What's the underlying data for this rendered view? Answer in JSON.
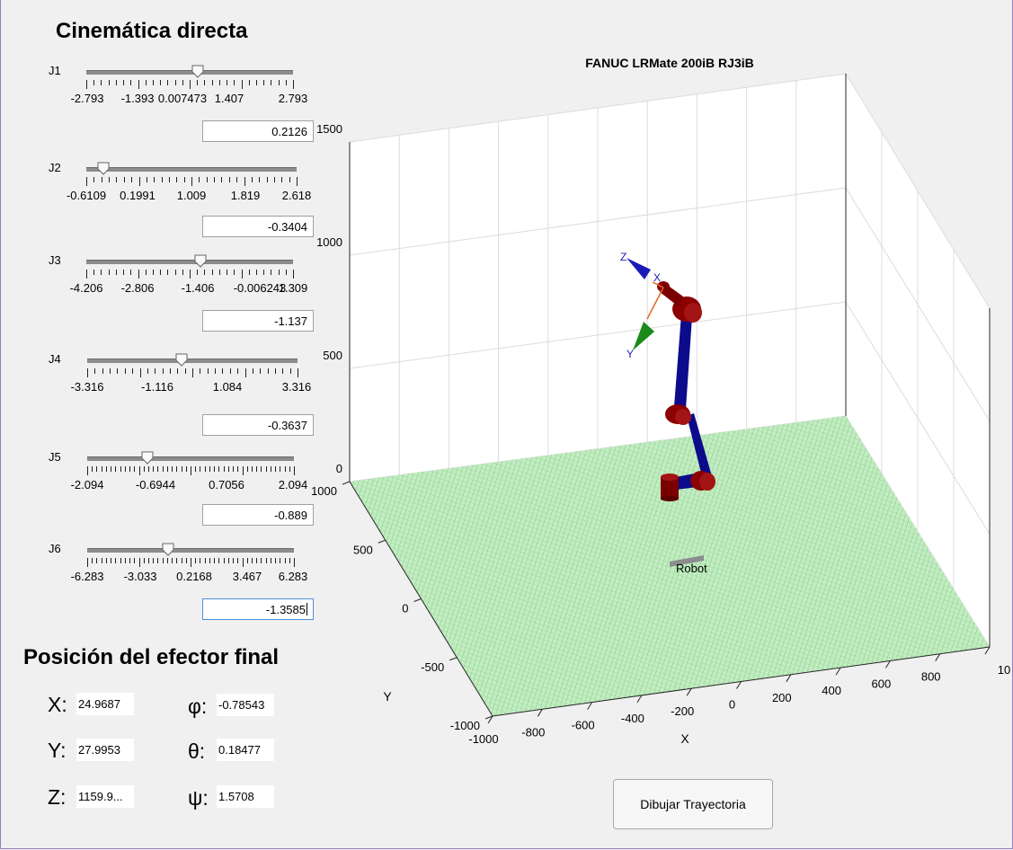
{
  "title_fk": "Cinemática directa",
  "joints": [
    {
      "label": "J1",
      "value": "0.2126",
      "ticks": [
        "-2.793",
        "-1.393",
        "0.007473",
        "1.407",
        "2.793"
      ],
      "frac": 0.54
    },
    {
      "label": "J2",
      "value": "-0.3404",
      "ticks": [
        "-0.6109",
        "0.1991",
        "1.009",
        "1.819",
        "2.618"
      ],
      "frac": 0.08
    },
    {
      "label": "J3",
      "value": "-1.137",
      "ticks": [
        "-4.206",
        "-2.806",
        "-1.406",
        "-0.006243",
        "1.309"
      ],
      "frac": 0.55
    },
    {
      "label": "J4",
      "value": "-0.3637",
      "ticks": [
        "-3.316",
        "-1.116",
        "1.084",
        "3.316"
      ],
      "frac": 0.45
    },
    {
      "label": "J5",
      "value": "-0.889",
      "ticks": [
        "-2.094",
        "-0.6944",
        "0.7056",
        "2.094"
      ],
      "frac": 0.29
    },
    {
      "label": "J6",
      "value": "-1.3585",
      "ticks": [
        "-6.283",
        "-3.033",
        "0.2168",
        "3.467",
        "6.283"
      ],
      "frac": 0.39
    }
  ],
  "title_pos": "Posición del efector final",
  "position": {
    "x_label": "X:",
    "x_value": "24.9687",
    "y_label": "Y:",
    "y_value": "27.9953",
    "z_label": "Z:",
    "z_value": "1159.9...",
    "phi_label": "φ:",
    "phi_value": "-0.78543",
    "theta_label": "θ:",
    "theta_value": "0.18477",
    "psi_label": "ψ:",
    "psi_value": "1.5708"
  },
  "plot": {
    "title": "FANUC LRMate 200iB RJ3iB",
    "x_axis_label": "X",
    "y_axis_label": "Y",
    "z_ticks": [
      "0",
      "500",
      "1000",
      "1500"
    ],
    "x_ticks": [
      "-1000",
      "-800",
      "-600",
      "-400",
      "-200",
      "0",
      "200",
      "400",
      "600",
      "800",
      "10"
    ],
    "y_ticks": [
      "-1000",
      "-500",
      "0",
      "500",
      "1000"
    ],
    "frame_labels": [
      "Z",
      "X",
      "Y"
    ],
    "robot_label": "Robot",
    "floor_color": "#a8e0a8",
    "link_color": "#0b0b8c",
    "joint_color": "#8b0000"
  },
  "button_label": "Dibujar Trayectoria"
}
